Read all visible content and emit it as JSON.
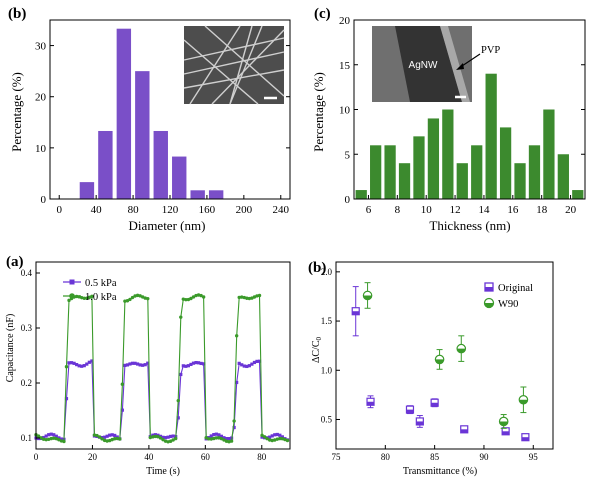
{
  "chart_data": [
    {
      "panel": "(b)",
      "type": "bar",
      "xlabel": "Diameter (nm)",
      "ylabel": "Percentage (%)",
      "xlim": [
        -10,
        250
      ],
      "ylim": [
        0,
        35
      ],
      "xticks": [
        "0",
        "40",
        "80",
        "120",
        "160",
        "200",
        "240"
      ],
      "yticks": [
        "0",
        "10",
        "20",
        "30"
      ],
      "x": [
        30,
        50,
        70,
        90,
        110,
        130,
        150,
        170
      ],
      "values": [
        3.3,
        13.3,
        33.3,
        25,
        13.3,
        8.3,
        1.7,
        1.7
      ],
      "color": "#7a4fc8"
    },
    {
      "panel": "(c)",
      "type": "bar",
      "xlabel": "Thickness (nm)",
      "ylabel": "Percentage (%)",
      "xlim": [
        5,
        21
      ],
      "ylim": [
        0,
        20
      ],
      "xticks": [
        "6",
        "8",
        "10",
        "12",
        "14",
        "16",
        "18",
        "20"
      ],
      "yticks": [
        "0",
        "5",
        "10",
        "15",
        "20"
      ],
      "x": [
        5.5,
        6.5,
        7.5,
        8.5,
        9.5,
        10.5,
        11.5,
        12.5,
        13.5,
        14.5,
        15.5,
        16.5,
        17.5,
        18.5,
        19.5,
        20.5
      ],
      "values": [
        1,
        6,
        6,
        4,
        7,
        9,
        10,
        4,
        6,
        14,
        8,
        4,
        6,
        10,
        5,
        1
      ],
      "color": "#3c8a2e",
      "annotations": [
        "AgNW",
        "PVP"
      ]
    },
    {
      "panel": "(a)",
      "type": "line",
      "xlabel": "Time (s)",
      "ylabel": "Capacitance (nF)",
      "xlim": [
        0,
        90
      ],
      "ylim": [
        0.08,
        0.42
      ],
      "xticks": [
        "0",
        "20",
        "40",
        "60",
        "80"
      ],
      "yticks": [
        "0.1",
        "0.2",
        "0.3",
        "0.4"
      ],
      "legend_position": "top-left",
      "pulses": [
        [
          10,
          20
        ],
        [
          30,
          40
        ],
        [
          50,
          60
        ],
        [
          70,
          80
        ]
      ],
      "baseline": 0.1,
      "series": [
        {
          "name": "0.5 kPa",
          "level": 0.237,
          "color": "#6a35d6"
        },
        {
          "name": "1.0 kPa",
          "level": 0.353,
          "color": "#3a9a2a"
        }
      ]
    },
    {
      "panel": "(b)",
      "type": "scatter",
      "xlabel": "Transmittance (%)",
      "ylabel": "ΔC/C0",
      "xlim": [
        75,
        97
      ],
      "ylim": [
        0.2,
        2.1
      ],
      "xticks": [
        "75",
        "80",
        "85",
        "90",
        "95"
      ],
      "yticks": [
        "0.5",
        "1.0",
        "1.5",
        "2.0"
      ],
      "legend_position": "top-right",
      "series": [
        {
          "name": "Original",
          "color": "#6a35d6",
          "marker": "square",
          "points": [
            [
              77,
              1.6,
              0.25
            ],
            [
              78.5,
              0.68,
              0.06
            ],
            [
              82.5,
              0.6,
              0.04
            ],
            [
              83.5,
              0.48,
              0.06
            ],
            [
              85,
              0.67,
              0.04
            ],
            [
              88,
              0.4,
              0.02
            ],
            [
              92.2,
              0.38,
              0.03
            ],
            [
              94.2,
              0.32,
              0.02
            ]
          ]
        },
        {
          "name": "W90",
          "color": "#3a9a2a",
          "marker": "circle",
          "points": [
            [
              78.2,
              1.76,
              0.13
            ],
            [
              85.5,
              1.11,
              0.1
            ],
            [
              87.7,
              1.22,
              0.13
            ],
            [
              92,
              0.48,
              0.07
            ],
            [
              94,
              0.7,
              0.13
            ]
          ]
        }
      ]
    }
  ]
}
